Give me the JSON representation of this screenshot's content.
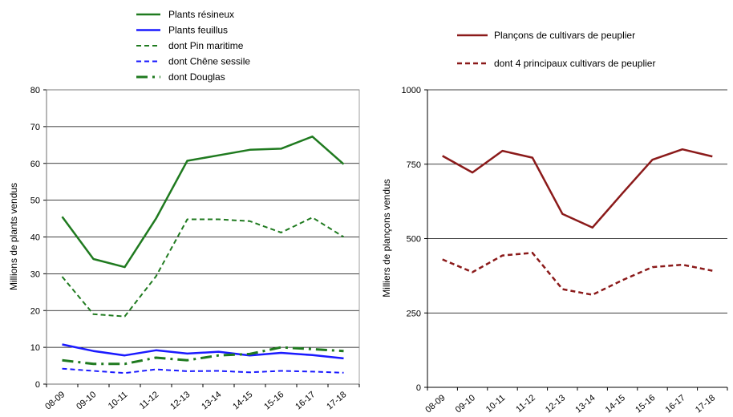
{
  "chart_data": [
    {
      "type": "line",
      "title": "",
      "xlabel": "",
      "ylabel": "Millions de plants vendus",
      "categories": [
        "08-09",
        "09-10",
        "10-11",
        "11-12",
        "12-13",
        "13-14",
        "14-15",
        "15-16",
        "16-17",
        "17-18"
      ],
      "ylim": [
        0,
        80
      ],
      "yticks": [
        0,
        10,
        20,
        30,
        40,
        50,
        60,
        70,
        80
      ],
      "grid": true,
      "legend_position": "top",
      "series": [
        {
          "name": "Plants résineux",
          "color": "#1f7a1f",
          "dash": "solid",
          "width": 2.5,
          "values": [
            45.5,
            34,
            31.8,
            45,
            60.7,
            62.2,
            63.7,
            64,
            67.3,
            59.8
          ]
        },
        {
          "name": "Plants feuillus",
          "color": "#1a1aff",
          "dash": "solid",
          "width": 2.5,
          "values": [
            10.8,
            9,
            7.8,
            9.2,
            8.3,
            8.8,
            7.8,
            8.5,
            7.9,
            7
          ]
        },
        {
          "name": "dont Pin maritime",
          "color": "#1f7a1f",
          "dash": "short",
          "width": 2,
          "values": [
            29.2,
            19,
            18.4,
            29.3,
            44.8,
            44.8,
            44.3,
            41.2,
            45.3,
            40
          ]
        },
        {
          "name": "dont Chêne sessile",
          "color": "#1a1aff",
          "dash": "short",
          "width": 2,
          "values": [
            4.2,
            3.6,
            3,
            4,
            3.5,
            3.6,
            3.2,
            3.6,
            3.4,
            3.1
          ]
        },
        {
          "name": "dont Douglas",
          "color": "#1f7a1f",
          "dash": "dashdot",
          "width": 3,
          "values": [
            6.5,
            5.5,
            5.5,
            7.2,
            6.5,
            7.8,
            8.2,
            10,
            9.5,
            9
          ]
        }
      ]
    },
    {
      "type": "line",
      "title": "",
      "xlabel": "",
      "ylabel": "Milliers de plançons vendus",
      "categories": [
        "08-09",
        "09-10",
        "10-11",
        "11-12",
        "12-13",
        "13-14",
        "14-15",
        "15-16",
        "16-17",
        "17-18"
      ],
      "ylim": [
        0,
        1000
      ],
      "yticks": [
        0,
        250,
        500,
        750,
        1000
      ],
      "grid": true,
      "legend_position": "top",
      "series": [
        {
          "name": "Plançons de cultivars de peuplier",
          "color": "#8b1a1a",
          "dash": "solid",
          "width": 2.5,
          "values": [
            778,
            722,
            795,
            772,
            583,
            537,
            652,
            765,
            800,
            776
          ]
        },
        {
          "name": "dont 4 principaux cultivars de peuplier",
          "color": "#8b1a1a",
          "dash": "short",
          "width": 2.5,
          "values": [
            430,
            387,
            443,
            452,
            330,
            311,
            360,
            404,
            412,
            392
          ]
        }
      ]
    }
  ]
}
